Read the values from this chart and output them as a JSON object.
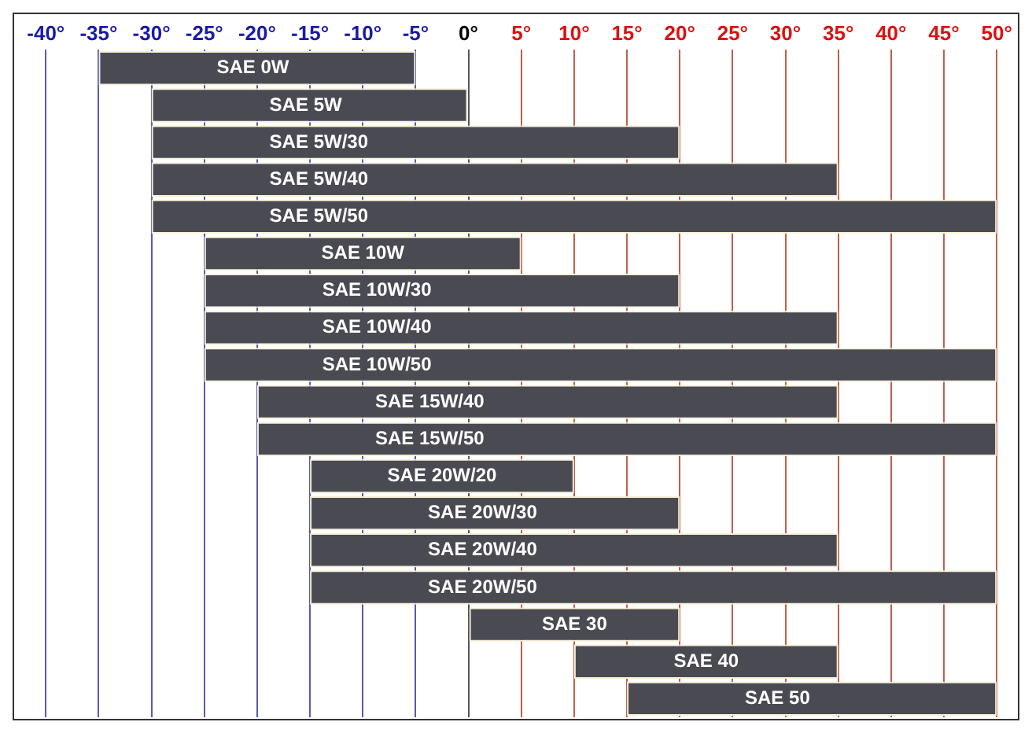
{
  "chart_data": {
    "type": "bar",
    "orientation": "horizontal",
    "categories": [
      "SAE 0W",
      "SAE 5W",
      "SAE 5W/30",
      "SAE 5W/40",
      "SAE 5W/50",
      "SAE 10W",
      "SAE 10W/30",
      "SAE 10W/40",
      "SAE 10W/50",
      "SAE 15W/40",
      "SAE 15W/50",
      "SAE 20W/20",
      "SAE 20W/30",
      "SAE 20W/40",
      "SAE 20W/50",
      "SAE 30",
      "SAE 40",
      "SAE 50"
    ],
    "base": [
      -35,
      -30,
      -30,
      -30,
      -30,
      -25,
      -25,
      -25,
      -25,
      -20,
      -20,
      -15,
      -15,
      -15,
      -15,
      0,
      10,
      15
    ],
    "values": [
      30,
      30,
      50,
      65,
      80,
      30,
      45,
      60,
      75,
      55,
      70,
      25,
      35,
      50,
      65,
      20,
      25,
      35
    ],
    "color": "#4a4a52",
    "xlim": [
      -43,
      52
    ],
    "xticks": [
      {
        "value": -40,
        "label": "-40°"
      },
      {
        "value": -35,
        "label": "-35°"
      },
      {
        "value": -30,
        "label": "-30°"
      },
      {
        "value": -25,
        "label": "-25°"
      },
      {
        "value": -20,
        "label": "-20°"
      },
      {
        "value": -15,
        "label": "-15°"
      },
      {
        "value": -10,
        "label": "-10°"
      },
      {
        "value": -5,
        "label": "-5°"
      },
      {
        "value": 0,
        "label": "0°"
      },
      {
        "value": 5,
        "label": "5°"
      },
      {
        "value": 10,
        "label": "10°"
      },
      {
        "value": 15,
        "label": "15°"
      },
      {
        "value": 20,
        "label": "20°"
      },
      {
        "value": 25,
        "label": "25°"
      },
      {
        "value": 30,
        "label": "30°"
      },
      {
        "value": 35,
        "label": "35°"
      },
      {
        "value": 40,
        "label": "40°"
      },
      {
        "value": 45,
        "label": "45°"
      },
      {
        "value": 50,
        "label": "50°"
      }
    ],
    "grid": "x",
    "legend": false
  }
}
